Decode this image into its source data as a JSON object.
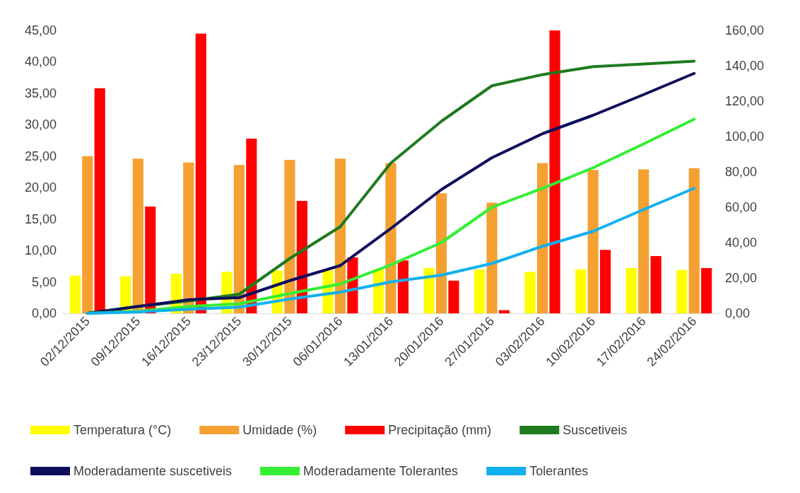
{
  "chart_data": {
    "type": "bar",
    "categories": [
      "02/12/2015",
      "09/12/2015",
      "16/12/2015",
      "23/12/2015",
      "30/12/2015",
      "06/01/2016",
      "13/01/2016",
      "20/01/2016",
      "27/01/2016",
      "03/02/2016",
      "10/02/2016",
      "17/02/2016",
      "24/02/2016"
    ],
    "series": [
      {
        "name": "Temperatura (°C)",
        "color": "#ffff00",
        "values": [
          6.0,
          5.9,
          6.3,
          6.6,
          6.8,
          6.8,
          7.0,
          7.2,
          7.0,
          6.6,
          7.0,
          7.2,
          6.9
        ]
      },
      {
        "name": "Umidade (%)",
        "color": "#f4a132",
        "values": [
          25.0,
          24.6,
          24.0,
          23.6,
          24.4,
          24.6,
          23.9,
          19.1,
          17.6,
          23.9,
          22.8,
          22.9,
          23.1
        ]
      },
      {
        "name": "Precipitação (mm)",
        "color": "#ff0000",
        "values": [
          35.8,
          17.0,
          44.5,
          27.8,
          17.9,
          8.9,
          8.4,
          5.2,
          0.5,
          45.0,
          10.1,
          9.1,
          7.2
        ]
      },
      {
        "name": "Suscetiveis",
        "type": "line",
        "axis": "y2",
        "color": "#1e7b1e",
        "values": [
          0,
          3.9,
          7,
          10.8,
          31,
          49,
          85,
          108.6,
          128.7,
          135,
          139.5,
          141,
          142.6
        ]
      },
      {
        "name": "Moderadamente suscetiveis",
        "type": "line",
        "axis": "y2",
        "color": "#0d0d5c",
        "values": [
          0,
          3.9,
          7.7,
          8.9,
          18.5,
          27,
          48,
          70,
          88,
          101.6,
          112,
          123.7,
          135.7
        ]
      },
      {
        "name": "Moderadamente Tolerantes",
        "type": "line",
        "axis": "y2",
        "color": "#33ee33",
        "values": [
          0,
          1.2,
          3.9,
          5.4,
          11.2,
          16.6,
          27.4,
          40,
          60,
          70.7,
          82.3,
          95.8,
          109.8
        ]
      },
      {
        "name": "Tolerantes",
        "type": "line",
        "axis": "y2",
        "color": "#12b0ee",
        "values": [
          0,
          0.8,
          2.3,
          3.5,
          8.1,
          12,
          17.8,
          21.6,
          28.2,
          37.9,
          46.4,
          58.7,
          70.7
        ]
      }
    ],
    "ylim": [
      0,
      45
    ],
    "yticks": [
      {
        "value": 0,
        "label": "0,00"
      },
      {
        "value": 5,
        "label": "5,00"
      },
      {
        "value": 10,
        "label": "10,00"
      },
      {
        "value": 15,
        "label": "15,00"
      },
      {
        "value": 20,
        "label": "20,00"
      },
      {
        "value": 25,
        "label": "25,00"
      },
      {
        "value": 30,
        "label": "30,00"
      },
      {
        "value": 35,
        "label": "35,00"
      },
      {
        "value": 40,
        "label": "40,00"
      },
      {
        "value": 45,
        "label": "45,00"
      }
    ],
    "y2lim": [
      0,
      160
    ],
    "y2ticks": [
      {
        "value": 0,
        "label": "0,00"
      },
      {
        "value": 20,
        "label": "20,00"
      },
      {
        "value": 40,
        "label": "40,00"
      },
      {
        "value": 60,
        "label": "60,00"
      },
      {
        "value": 80,
        "label": "80,00"
      },
      {
        "value": 100,
        "label": "100,00"
      },
      {
        "value": 120,
        "label": "120,00"
      },
      {
        "value": 140,
        "label": "140,00"
      },
      {
        "value": 160,
        "label": "160,00"
      }
    ],
    "grid": false,
    "legend": "bottom",
    "marker": "none",
    "line_style": "solid"
  }
}
